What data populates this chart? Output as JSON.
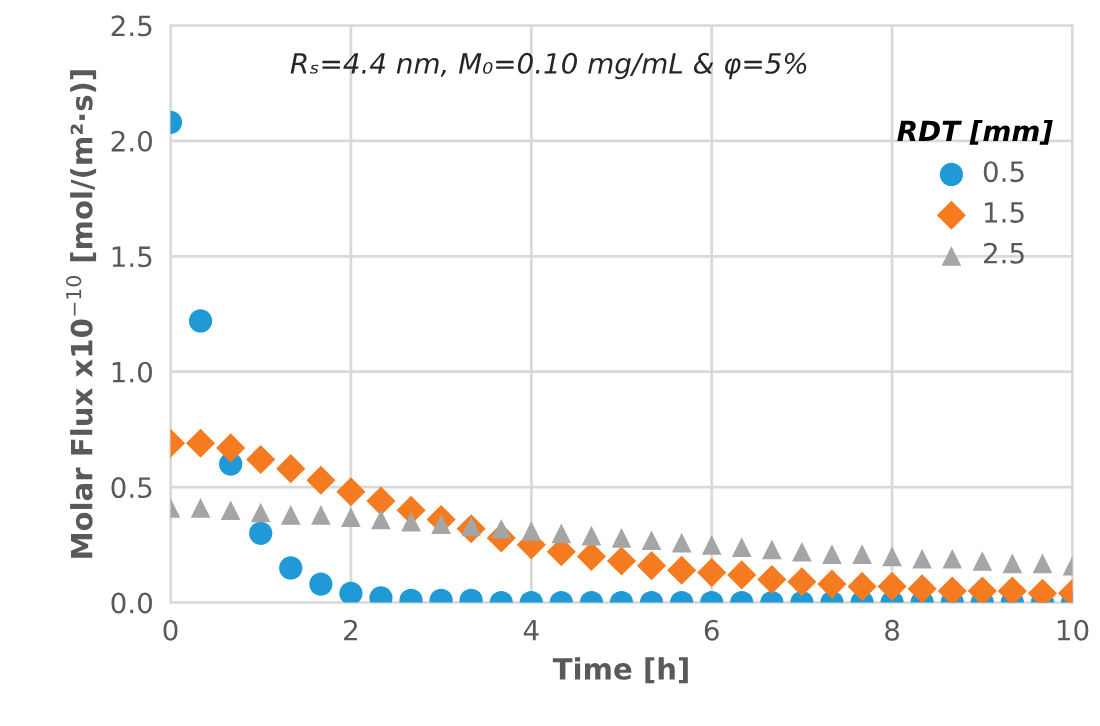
{
  "chart_data": {
    "type": "scatter",
    "xlabel": "Time [h]",
    "ylabel": "Molar Flux x10$^{−10}$ [mol/(m²·s)]",
    "legend_title": "RDT [mm]",
    "annotations": [
      "Rₛ=4.4 nm, M₀=0.10 mg/mL & φ=5%"
    ],
    "x": [
      0,
      0.333,
      0.667,
      1,
      1.333,
      1.667,
      2,
      2.333,
      2.667,
      3,
      3.333,
      3.667,
      4,
      4.333,
      4.667,
      5,
      5.333,
      5.667,
      6,
      6.333,
      6.667,
      7,
      7.333,
      7.667,
      8,
      8.333,
      8.667,
      9,
      9.333,
      9.667,
      10
    ],
    "series": [
      {
        "name": "0.5",
        "color": "#1f9ad6",
        "marker": "circle",
        "values": [
          2.08,
          1.22,
          0.6,
          0.3,
          0.15,
          0.08,
          0.04,
          0.02,
          0.01,
          0.01,
          0.01,
          0.0,
          0.0,
          0.0,
          0.0,
          0.0,
          0.0,
          0.0,
          0.0,
          0.0,
          0.0,
          0.0,
          0.0,
          0.0,
          0.0,
          0.0,
          0.0,
          0.0,
          0.0,
          0.0,
          0.0
        ]
      },
      {
        "name": "1.5",
        "color": "#f47b20",
        "marker": "diamond",
        "values": [
          0.69,
          0.69,
          0.67,
          0.62,
          0.58,
          0.53,
          0.48,
          0.44,
          0.4,
          0.36,
          0.32,
          0.28,
          0.25,
          0.22,
          0.2,
          0.18,
          0.16,
          0.14,
          0.13,
          0.12,
          0.1,
          0.09,
          0.08,
          0.07,
          0.07,
          0.06,
          0.05,
          0.05,
          0.05,
          0.04,
          0.04
        ]
      },
      {
        "name": "2.5",
        "color": "#a5a5a5",
        "marker": "triangle",
        "values": [
          0.41,
          0.41,
          0.4,
          0.39,
          0.38,
          0.38,
          0.37,
          0.36,
          0.35,
          0.34,
          0.33,
          0.32,
          0.31,
          0.3,
          0.29,
          0.28,
          0.27,
          0.26,
          0.25,
          0.24,
          0.23,
          0.22,
          0.21,
          0.21,
          0.2,
          0.19,
          0.19,
          0.18,
          0.17,
          0.17,
          0.16
        ]
      }
    ],
    "xlim": [
      0,
      10
    ],
    "xticks": [
      0,
      2,
      4,
      6,
      8,
      10
    ],
    "ylim": [
      0,
      2.5
    ],
    "yticks": [
      {
        "value": 0,
        "label": "0.0"
      },
      {
        "value": 0.5,
        "label": "0.5"
      },
      {
        "value": 1,
        "label": "1.0"
      },
      {
        "value": 1.5,
        "label": "1.5"
      },
      {
        "value": 2,
        "label": "2.0"
      },
      {
        "value": 2.5,
        "label": "2.5"
      }
    ],
    "grid": true,
    "legend": "top right"
  }
}
